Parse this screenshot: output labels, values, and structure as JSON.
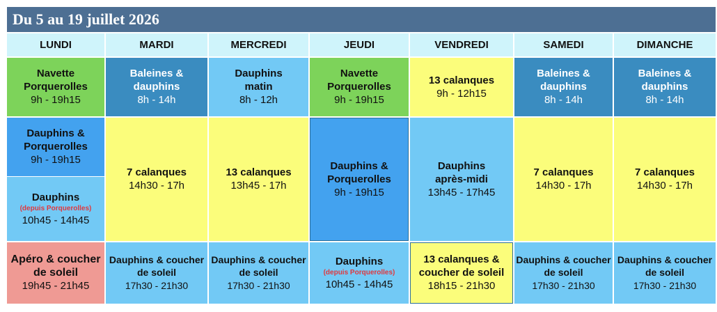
{
  "title": "Du 5 au 19 juillet 2026",
  "days": [
    "LUNDI",
    "MARDI",
    "MERCREDI",
    "JEUDI",
    "VENDREDI",
    "SAMEDI",
    "DIMANCHE"
  ],
  "row1": [
    {
      "title": "Navette Porquerolles",
      "hours": "9h - 19h15"
    },
    {
      "title": "Baleines & dauphins",
      "hours": "8h - 14h"
    },
    {
      "title": "Dauphins matin",
      "hours": "8h - 12h"
    },
    {
      "title": "Navette Porquerolles",
      "hours": "9h - 19h15"
    },
    {
      "title": "13 calanques",
      "hours": "9h - 12h15"
    },
    {
      "title": "Baleines & dauphins",
      "hours": "8h - 14h"
    },
    {
      "title": "Baleines & dauphins",
      "hours": "8h - 14h"
    }
  ],
  "row2": {
    "lundi_top": {
      "title": "Dauphins & Porquerolles",
      "hours": "9h - 19h15"
    },
    "lundi_bottom": {
      "title": "Dauphins",
      "note": "(depuis Porquerolles)",
      "hours": "10h45 - 14h45"
    },
    "mardi": {
      "title": "7 calanques",
      "hours": "14h30 - 17h"
    },
    "mercredi": {
      "title": "13 calanques",
      "hours": "13h45 - 17h"
    },
    "jeudi": {
      "title": "Dauphins & Porquerolles",
      "hours": "9h - 19h15"
    },
    "vendredi": {
      "title": "Dauphins après-midi",
      "hours": "13h45 - 17h45"
    },
    "samedi": {
      "title": "7 calanques",
      "hours": "14h30 - 17h"
    },
    "dimanche": {
      "title": "7 calanques",
      "hours": "14h30 - 17h"
    }
  },
  "row3": [
    {
      "title": "Apéro & coucher de soleil",
      "hours": "19h45 - 21h45"
    },
    {
      "title": "Dauphins & coucher de soleil",
      "hours": "17h30 - 21h30"
    },
    {
      "title": "Dauphins & coucher de soleil",
      "hours": "17h30 - 21h30"
    },
    {
      "title": "Dauphins",
      "note": "(depuis Porquerolles)",
      "hours": "10h45 - 14h45"
    },
    {
      "title": "13 calanques & coucher de soleil",
      "hours": "18h15 - 21h30"
    },
    {
      "title": "Dauphins & coucher de soleil",
      "hours": "17h30 - 21h30"
    },
    {
      "title": "Dauphins & coucher de soleil",
      "hours": "17h30 - 21h30"
    }
  ],
  "colors": {
    "header": "#4d6f93",
    "day_header": "#cff4fb",
    "navette": "#7dd35a",
    "baleines": "#3a8cc0",
    "dauphins": "#72c9f5",
    "calanques": "#fbfd7b",
    "porquerolles": "#43a2ef",
    "apero": "#ef9a94",
    "note": "#e0383e"
  }
}
